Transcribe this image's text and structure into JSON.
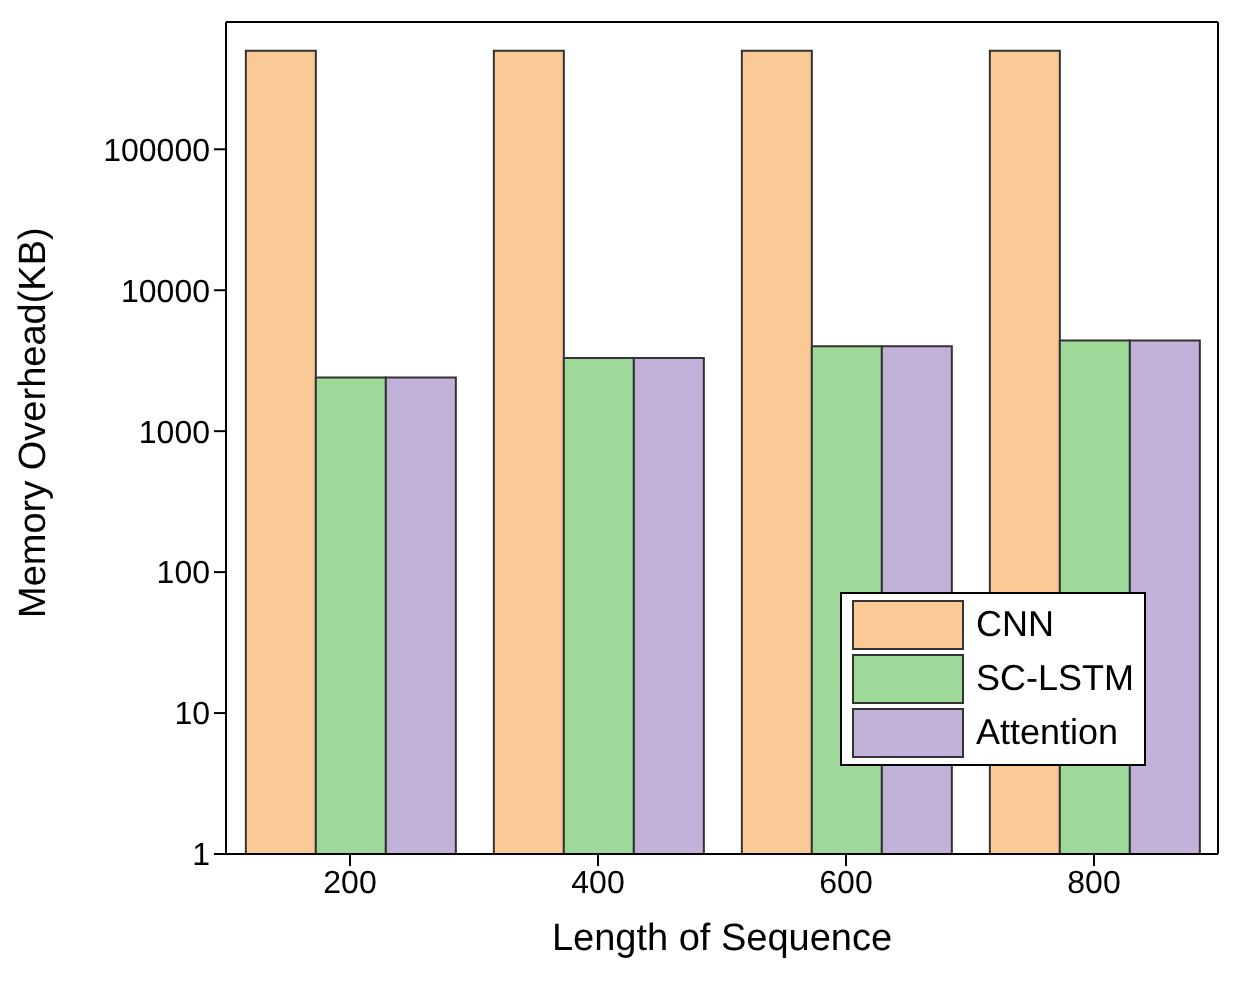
{
  "chart_data": {
    "type": "bar",
    "xlabel": "Length of Sequence",
    "ylabel": "Memory Overhead(KB)",
    "categories": [
      "200",
      "400",
      "600",
      "800"
    ],
    "series": [
      {
        "name": "CNN",
        "color": "#fbc995",
        "values": [
          500000,
          500000,
          500000,
          500000
        ]
      },
      {
        "name": "SC-LSTM",
        "color": "#9ed99a",
        "values": [
          2400,
          3300,
          4000,
          4400
        ]
      },
      {
        "name": "Attention",
        "color": "#c2b1d8",
        "values": [
          2400,
          3300,
          4000,
          4400
        ]
      }
    ],
    "log": true,
    "ylim": [
      1,
      800000
    ],
    "yticks": [
      1,
      10,
      100,
      1000,
      10000,
      100000
    ],
    "grid": false,
    "legend": "bottom right"
  }
}
